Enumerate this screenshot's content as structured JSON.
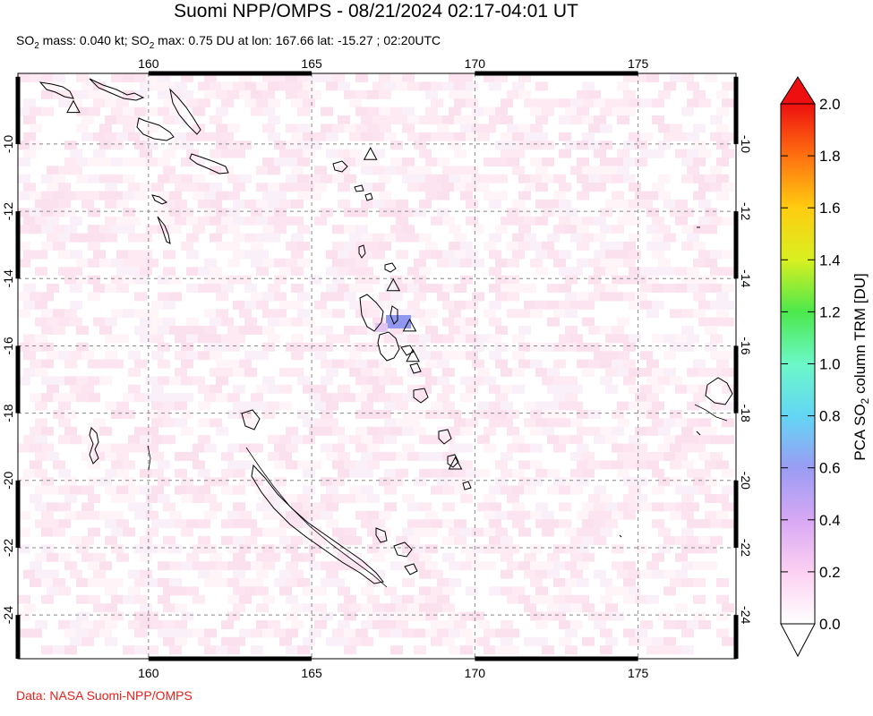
{
  "title": "Suomi NPP/OMPS - 08/21/2024 02:17-04:01 UT",
  "subtitle": {
    "so2_label": "SO",
    "so2_sub": "2",
    "mass_text": " mass: 0.040 kt; SO",
    "max_sub": "2",
    "max_text": " max: 0.75 DU at lon: 167.66 lat: -15.27 ; 02:20UTC"
  },
  "credit": "Data: NASA Suomi-NPP/OMPS",
  "map": {
    "lon_range": [
      156,
      178
    ],
    "lat_range": [
      -25.3,
      -7.9
    ],
    "lon_ticks": [
      "160",
      "165",
      "170",
      "175"
    ],
    "lat_ticks": [
      "-10",
      "-12",
      "-14",
      "-16",
      "-18",
      "-20",
      "-22",
      "-24"
    ],
    "volcano_icon": "triangle-icon",
    "volcanoes": [
      {
        "lon": 157.7,
        "lat": -8.9
      },
      {
        "lon": 166.8,
        "lat": -10.3
      },
      {
        "lon": 167.5,
        "lat": -14.2
      },
      {
        "lon": 168.0,
        "lat": -15.4
      },
      {
        "lon": 168.1,
        "lat": -16.3
      },
      {
        "lon": 169.4,
        "lat": -19.5
      }
    ],
    "max_value": {
      "lon": 167.66,
      "lat": -15.27,
      "value_du": 0.75
    }
  },
  "colorbar": {
    "label_pre": "PCA SO",
    "label_sub": "2",
    "label_post": " column TRM [DU]",
    "ticks": [
      "0.0",
      "0.2",
      "0.4",
      "0.6",
      "0.8",
      "1.0",
      "1.2",
      "1.4",
      "1.6",
      "1.8",
      "2.0"
    ],
    "range": [
      0,
      2.0
    ],
    "colors": [
      "#ffffff",
      "#fcd0f2",
      "#d7a8f4",
      "#9a9cf4",
      "#63d6f4",
      "#6cf8c8",
      "#4ce84c",
      "#d8f020",
      "#ffcc10",
      "#ff7010",
      "#ee1010"
    ]
  }
}
